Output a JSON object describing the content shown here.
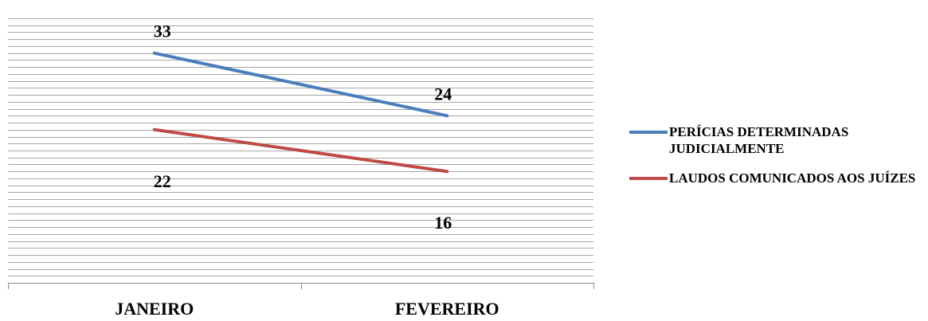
{
  "chart_data": {
    "type": "line",
    "categories": [
      "JANEIRO",
      "FEVEREIRO"
    ],
    "series": [
      {
        "name": "PERÍCIAS DETERMINADAS JUDICIALMENTE",
        "values": [
          33,
          24
        ],
        "color": "#4A7EBB"
      },
      {
        "name": "LAUDOS COMUNICADOS AOS JUÍZES",
        "values": [
          22,
          16
        ],
        "color": "#BE4B48"
      }
    ],
    "title": "",
    "xlabel": "",
    "ylabel": "",
    "ylim": [
      0,
      38
    ],
    "grid": true,
    "legend": "right"
  }
}
